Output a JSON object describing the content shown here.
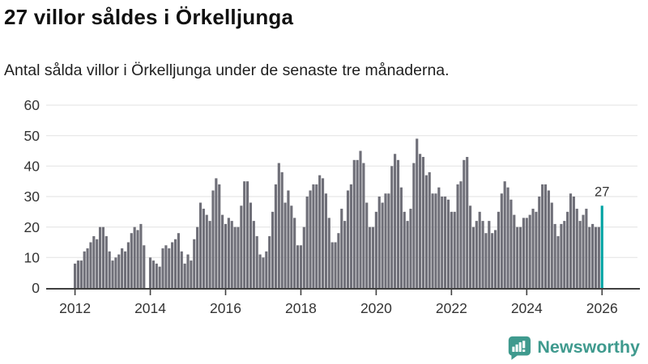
{
  "header": {
    "title": "27 villor såldes i Örkelljunga",
    "subtitle": "Antal sålda villor i Örkelljunga under de senaste tre månaderna."
  },
  "chart_data": {
    "type": "bar",
    "title": "27 villor såldes i Örkelljunga",
    "subtitle": "Antal sålda villor i Örkelljunga under de senaste tre månaderna.",
    "x_start": "2012-01",
    "x_frequency": "monthly",
    "values": [
      8,
      9,
      9,
      12,
      13,
      15,
      17,
      16,
      20,
      20,
      17,
      12,
      9,
      10,
      11,
      13,
      12,
      15,
      18,
      20,
      19,
      21,
      14,
      0,
      10,
      9,
      8,
      7,
      13,
      14,
      13,
      15,
      16,
      18,
      12,
      8,
      11,
      9,
      16,
      20,
      28,
      26,
      24,
      22,
      32,
      36,
      34,
      24,
      21,
      23,
      22,
      20,
      20,
      27,
      35,
      35,
      28,
      22,
      17,
      11,
      10,
      12,
      17,
      25,
      34,
      41,
      38,
      28,
      32,
      27,
      23,
      14,
      14,
      20,
      30,
      32,
      34,
      34,
      37,
      36,
      31,
      23,
      15,
      15,
      18,
      26,
      22,
      32,
      34,
      42,
      42,
      45,
      41,
      28,
      20,
      20,
      25,
      30,
      28,
      31,
      31,
      40,
      44,
      42,
      33,
      25,
      22,
      26,
      41,
      49,
      44,
      43,
      37,
      38,
      31,
      31,
      33,
      30,
      30,
      29,
      25,
      25,
      34,
      35,
      42,
      43,
      27,
      20,
      22,
      25,
      22,
      18,
      22,
      18,
      19,
      25,
      31,
      35,
      33,
      29,
      24,
      20,
      20,
      23,
      23,
      24,
      26,
      25,
      30,
      34,
      34,
      32,
      28,
      21,
      17,
      21,
      22,
      25,
      31,
      30,
      26,
      22,
      24,
      26,
      20,
      21,
      20,
      20,
      27
    ],
    "highlight": {
      "index": 168,
      "value": 27,
      "label": "27",
      "color": "#00a3a3"
    },
    "bar_color": "#6f6f78",
    "y_ticks": [
      0,
      10,
      20,
      30,
      40,
      50,
      60
    ],
    "ylim": [
      0,
      62
    ],
    "x_tick_labels": [
      "2012",
      "2014",
      "2016",
      "2018",
      "2020",
      "2022",
      "2024",
      "2026"
    ],
    "x_tick_every_months": 24,
    "grid": "horizontal",
    "legend": "none"
  },
  "branding": {
    "name": "Newsworthy",
    "color": "#3f9a8e",
    "icon": "newsworthy-chart-bubble-icon"
  }
}
